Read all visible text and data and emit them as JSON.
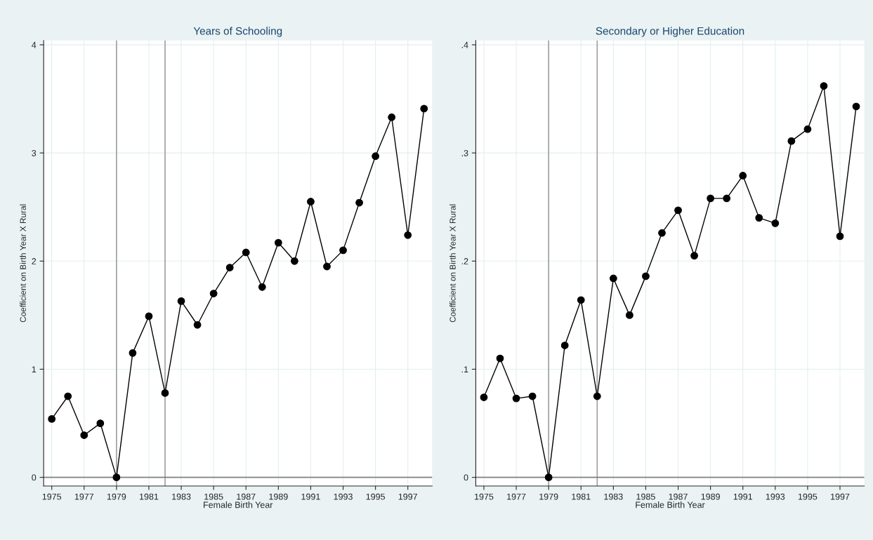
{
  "chart_data": [
    {
      "type": "line",
      "title": "Years of Schooling",
      "xlabel": "Female Birth Year",
      "ylabel": "Coefficient on Birth Year X Rural",
      "marker": "circle",
      "grid": true,
      "legend": false,
      "x": [
        1975,
        1976,
        1977,
        1978,
        1979,
        1980,
        1981,
        1982,
        1983,
        1984,
        1985,
        1986,
        1987,
        1988,
        1989,
        1990,
        1991,
        1992,
        1993,
        1994,
        1995,
        1996,
        1997,
        1998
      ],
      "series": [
        {
          "color": "#000000",
          "values": [
            0.54,
            0.75,
            0.39,
            0.5,
            0,
            1.15,
            1.49,
            0.78,
            1.63,
            1.41,
            1.7,
            1.94,
            2.08,
            1.76,
            2.17,
            2.0,
            2.55,
            1.95,
            2.1,
            2.54,
            2.97,
            3.33,
            2.24,
            3.41
          ]
        }
      ],
      "xlim": [
        1974.5,
        1998.5
      ],
      "xticks": [
        1975,
        1977,
        1979,
        1981,
        1983,
        1985,
        1987,
        1989,
        1991,
        1993,
        1995,
        1997
      ],
      "ylim": [
        -0.08,
        4.04
      ],
      "yticks": [
        0,
        1,
        2,
        3,
        4
      ],
      "ref_lines": [
        {
          "axis": "x",
          "value": 1979,
          "color": "#a0a0a0"
        },
        {
          "axis": "x",
          "value": 1982,
          "color": "#a0a0a0"
        },
        {
          "axis": "y",
          "value": 0,
          "color": "#808080"
        }
      ]
    },
    {
      "type": "line",
      "title": "Secondary or Higher Education",
      "xlabel": "Female Birth Year",
      "ylabel": "Coefficient on Birth Year X Rural",
      "marker": "circle",
      "grid": true,
      "legend": false,
      "x": [
        1975,
        1976,
        1977,
        1978,
        1979,
        1980,
        1981,
        1982,
        1983,
        1984,
        1985,
        1986,
        1987,
        1988,
        1989,
        1990,
        1991,
        1992,
        1993,
        1994,
        1995,
        1996,
        1997,
        1998
      ],
      "series": [
        {
          "color": "#000000",
          "values": [
            0.074,
            0.11,
            0.073,
            0.075,
            0,
            0.122,
            0.164,
            0.075,
            0.184,
            0.15,
            0.186,
            0.226,
            0.247,
            0.205,
            0.258,
            0.258,
            0.279,
            0.24,
            0.235,
            0.311,
            0.322,
            0.362,
            0.223,
            0.343
          ]
        }
      ],
      "xlim": [
        1974.5,
        1998.5
      ],
      "xticks": [
        1975,
        1977,
        1979,
        1981,
        1983,
        1985,
        1987,
        1989,
        1991,
        1993,
        1995,
        1997
      ],
      "ylim": [
        -0.008,
        0.404
      ],
      "yticks": [
        {
          "value": 0,
          "label": "0"
        },
        {
          "value": 0.1,
          "label": ".1"
        },
        {
          "value": 0.2,
          "label": ".2"
        },
        {
          "value": 0.3,
          "label": ".3"
        },
        {
          "value": 0.4,
          "label": ".4"
        }
      ],
      "ref_lines": [
        {
          "axis": "x",
          "value": 1979,
          "color": "#a0a0a0"
        },
        {
          "axis": "x",
          "value": 1982,
          "color": "#a0a0a0"
        },
        {
          "axis": "y",
          "value": 0,
          "color": "#808080"
        }
      ]
    }
  ]
}
